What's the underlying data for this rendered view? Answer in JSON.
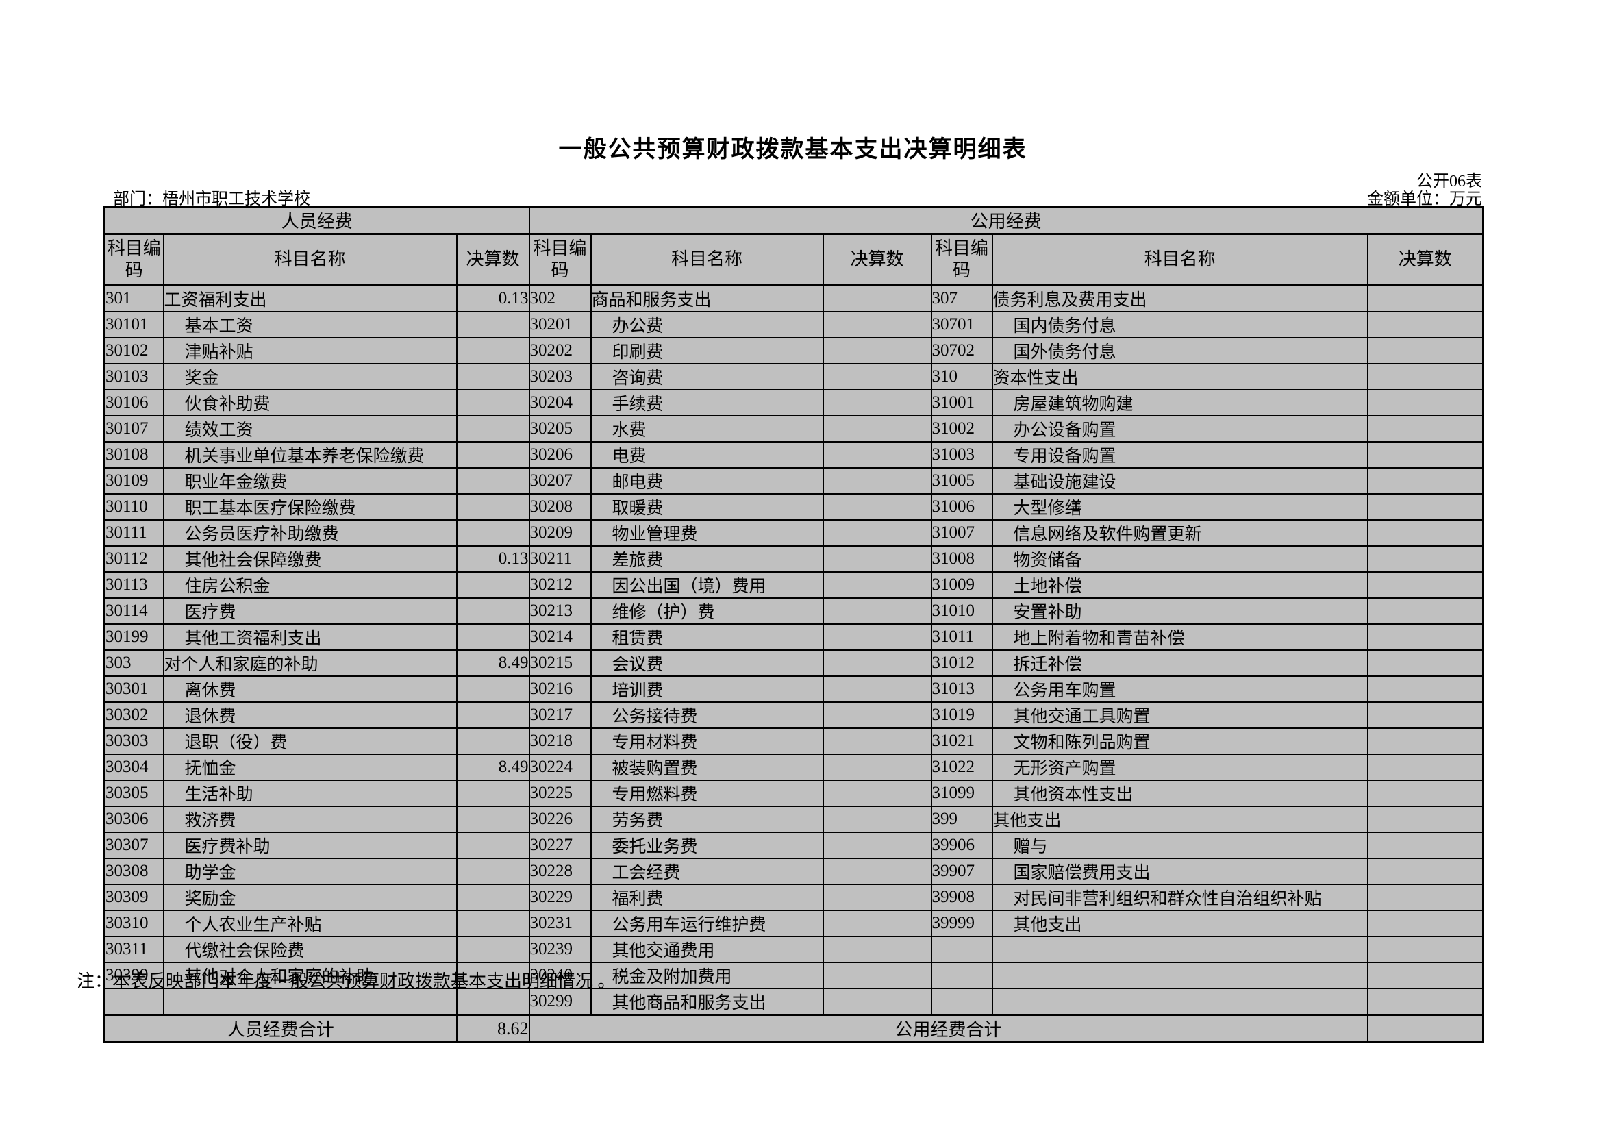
{
  "page": {
    "title": "一般公共预算财政拨款基本支出决算明细表",
    "form_code": "公开06表",
    "department_label": "部门：梧州市职工技术学校",
    "unit_label": "金额单位：万元",
    "note": "注：本表反映部门本年度一般公共预算财政拨款基本支出明细情况 。"
  },
  "table": {
    "groups": {
      "personnel": "人员经费",
      "public": "公用经费"
    },
    "column_headers": {
      "code": "科目编码",
      "name": "科目名称",
      "value": "决算数"
    },
    "totals": {
      "personnel_label": "人员经费合计",
      "personnel_value": "8.62",
      "public_label": "公用经费合计",
      "public_value": ""
    },
    "rows": {
      "personnel": [
        {
          "code": "301",
          "name": "工资福利支出",
          "value": "0.13",
          "level": 0
        },
        {
          "code": "30101",
          "name": "基本工资",
          "value": "",
          "level": 1
        },
        {
          "code": "30102",
          "name": "津贴补贴",
          "value": "",
          "level": 1
        },
        {
          "code": "30103",
          "name": "奖金",
          "value": "",
          "level": 1
        },
        {
          "code": "30106",
          "name": "伙食补助费",
          "value": "",
          "level": 1
        },
        {
          "code": "30107",
          "name": "绩效工资",
          "value": "",
          "level": 1
        },
        {
          "code": "30108",
          "name": "机关事业单位基本养老保险缴费",
          "value": "",
          "level": 1
        },
        {
          "code": "30109",
          "name": "职业年金缴费",
          "value": "",
          "level": 1
        },
        {
          "code": "30110",
          "name": "职工基本医疗保险缴费",
          "value": "",
          "level": 1
        },
        {
          "code": "30111",
          "name": "公务员医疗补助缴费",
          "value": "",
          "level": 1
        },
        {
          "code": "30112",
          "name": "其他社会保障缴费",
          "value": "0.13",
          "level": 1
        },
        {
          "code": "30113",
          "name": "住房公积金",
          "value": "",
          "level": 1
        },
        {
          "code": "30114",
          "name": "医疗费",
          "value": "",
          "level": 1
        },
        {
          "code": "30199",
          "name": "其他工资福利支出",
          "value": "",
          "level": 1
        },
        {
          "code": "303",
          "name": "对个人和家庭的补助",
          "value": "8.49",
          "level": 0
        },
        {
          "code": "30301",
          "name": "离休费",
          "value": "",
          "level": 1
        },
        {
          "code": "30302",
          "name": "退休费",
          "value": "",
          "level": 1
        },
        {
          "code": "30303",
          "name": "退职（役）费",
          "value": "",
          "level": 1
        },
        {
          "code": "30304",
          "name": "抚恤金",
          "value": "8.49",
          "level": 1
        },
        {
          "code": "30305",
          "name": "生活补助",
          "value": "",
          "level": 1
        },
        {
          "code": "30306",
          "name": "救济费",
          "value": "",
          "level": 1
        },
        {
          "code": "30307",
          "name": "医疗费补助",
          "value": "",
          "level": 1
        },
        {
          "code": "30308",
          "name": "助学金",
          "value": "",
          "level": 1
        },
        {
          "code": "30309",
          "name": "奖励金",
          "value": "",
          "level": 1
        },
        {
          "code": "30310",
          "name": "个人农业生产补贴",
          "value": "",
          "level": 1
        },
        {
          "code": "30311",
          "name": "代缴社会保险费",
          "value": "",
          "level": 1
        },
        {
          "code": "30399",
          "name": "其他对个人和家庭的补助",
          "value": "",
          "level": 1
        },
        {
          "code": "",
          "name": "",
          "value": "",
          "level": 1
        }
      ],
      "public_a": [
        {
          "code": "302",
          "name": "商品和服务支出",
          "value": "",
          "level": 0
        },
        {
          "code": "30201",
          "name": "办公费",
          "value": "",
          "level": 1
        },
        {
          "code": "30202",
          "name": "印刷费",
          "value": "",
          "level": 1
        },
        {
          "code": "30203",
          "name": "咨询费",
          "value": "",
          "level": 1
        },
        {
          "code": "30204",
          "name": "手续费",
          "value": "",
          "level": 1
        },
        {
          "code": "30205",
          "name": "水费",
          "value": "",
          "level": 1
        },
        {
          "code": "30206",
          "name": "电费",
          "value": "",
          "level": 1
        },
        {
          "code": "30207",
          "name": "邮电费",
          "value": "",
          "level": 1
        },
        {
          "code": "30208",
          "name": "取暖费",
          "value": "",
          "level": 1
        },
        {
          "code": "30209",
          "name": "物业管理费",
          "value": "",
          "level": 1
        },
        {
          "code": "30211",
          "name": "差旅费",
          "value": "",
          "level": 1
        },
        {
          "code": "30212",
          "name": "因公出国（境）费用",
          "value": "",
          "level": 1
        },
        {
          "code": "30213",
          "name": "维修（护）费",
          "value": "",
          "level": 1
        },
        {
          "code": "30214",
          "name": "租赁费",
          "value": "",
          "level": 1
        },
        {
          "code": "30215",
          "name": "会议费",
          "value": "",
          "level": 1
        },
        {
          "code": "30216",
          "name": "培训费",
          "value": "",
          "level": 1
        },
        {
          "code": "30217",
          "name": "公务接待费",
          "value": "",
          "level": 1
        },
        {
          "code": "30218",
          "name": "专用材料费",
          "value": "",
          "level": 1
        },
        {
          "code": "30224",
          "name": "被装购置费",
          "value": "",
          "level": 1
        },
        {
          "code": "30225",
          "name": "专用燃料费",
          "value": "",
          "level": 1
        },
        {
          "code": "30226",
          "name": "劳务费",
          "value": "",
          "level": 1
        },
        {
          "code": "30227",
          "name": "委托业务费",
          "value": "",
          "level": 1
        },
        {
          "code": "30228",
          "name": "工会经费",
          "value": "",
          "level": 1
        },
        {
          "code": "30229",
          "name": "福利费",
          "value": "",
          "level": 1
        },
        {
          "code": "30231",
          "name": "公务用车运行维护费",
          "value": "",
          "level": 1
        },
        {
          "code": "30239",
          "name": "其他交通费用",
          "value": "",
          "level": 1
        },
        {
          "code": "30240",
          "name": "税金及附加费用",
          "value": "",
          "level": 1
        },
        {
          "code": "30299",
          "name": "其他商品和服务支出",
          "value": "",
          "level": 1
        }
      ],
      "public_b": [
        {
          "code": "307",
          "name": "债务利息及费用支出",
          "value": "",
          "level": 0
        },
        {
          "code": "30701",
          "name": "国内债务付息",
          "value": "",
          "level": 1
        },
        {
          "code": "30702",
          "name": "国外债务付息",
          "value": "",
          "level": 1
        },
        {
          "code": "310",
          "name": "资本性支出",
          "value": "",
          "level": 0
        },
        {
          "code": "31001",
          "name": "房屋建筑物购建",
          "value": "",
          "level": 1
        },
        {
          "code": "31002",
          "name": "办公设备购置",
          "value": "",
          "level": 1
        },
        {
          "code": "31003",
          "name": "专用设备购置",
          "value": "",
          "level": 1
        },
        {
          "code": "31005",
          "name": "基础设施建设",
          "value": "",
          "level": 1
        },
        {
          "code": "31006",
          "name": "大型修缮",
          "value": "",
          "level": 1
        },
        {
          "code": "31007",
          "name": "信息网络及软件购置更新",
          "value": "",
          "level": 1
        },
        {
          "code": "31008",
          "name": "物资储备",
          "value": "",
          "level": 1
        },
        {
          "code": "31009",
          "name": "土地补偿",
          "value": "",
          "level": 1
        },
        {
          "code": "31010",
          "name": "安置补助",
          "value": "",
          "level": 1
        },
        {
          "code": "31011",
          "name": "地上附着物和青苗补偿",
          "value": "",
          "level": 1
        },
        {
          "code": "31012",
          "name": "拆迁补偿",
          "value": "",
          "level": 1
        },
        {
          "code": "31013",
          "name": "公务用车购置",
          "value": "",
          "level": 1
        },
        {
          "code": "31019",
          "name": "其他交通工具购置",
          "value": "",
          "level": 1
        },
        {
          "code": "31021",
          "name": "文物和陈列品购置",
          "value": "",
          "level": 1
        },
        {
          "code": "31022",
          "name": "无形资产购置",
          "value": "",
          "level": 1
        },
        {
          "code": "31099",
          "name": "其他资本性支出",
          "value": "",
          "level": 1
        },
        {
          "code": "399",
          "name": "其他支出",
          "value": "",
          "level": 0
        },
        {
          "code": "39906",
          "name": "赠与",
          "value": "",
          "level": 1
        },
        {
          "code": "39907",
          "name": "国家赔偿费用支出",
          "value": "",
          "level": 1
        },
        {
          "code": "39908",
          "name": "对民间非营利组织和群众性自治组织补贴",
          "value": "",
          "level": 1
        },
        {
          "code": "39999",
          "name": "其他支出",
          "value": "",
          "level": 1
        },
        {
          "code": "",
          "name": "",
          "value": "",
          "level": 1
        },
        {
          "code": "",
          "name": "",
          "value": "",
          "level": 1
        },
        {
          "code": "",
          "name": "",
          "value": "",
          "level": 1
        }
      ]
    }
  }
}
